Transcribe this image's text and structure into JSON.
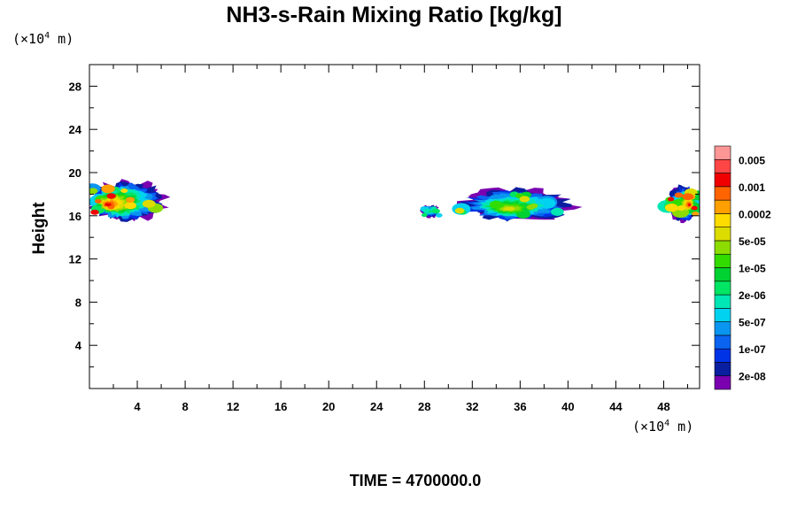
{
  "chart_data": {
    "type": "heatmap",
    "title": "NH3-s-Rain Mixing Ratio [kg/kg]",
    "ylabel": "Height",
    "xlabel": "",
    "x_unit": {
      "prefix": "(×10",
      "exp": "4",
      "suffix": " m)"
    },
    "y_unit": {
      "prefix": "(×10",
      "exp": "4",
      "suffix": " m)"
    },
    "xlim": [
      0,
      51
    ],
    "ylim": [
      0,
      30
    ],
    "x_ticks": [
      "4",
      "8",
      "12",
      "16",
      "20",
      "24",
      "28",
      "32",
      "36",
      "40",
      "44",
      "48"
    ],
    "y_ticks": [
      "4",
      "8",
      "12",
      "16",
      "20",
      "24",
      "28"
    ],
    "colorbar": {
      "colors": [
        "#7a00b0",
        "#0a1ea0",
        "#0032e6",
        "#0a64f0",
        "#0a96f0",
        "#00d2f0",
        "#00e6b4",
        "#00e664",
        "#00d232",
        "#32dc00",
        "#8cdc00",
        "#dcdc00",
        "#ffdc00",
        "#ffa000",
        "#ff6400",
        "#f00000",
        "#ff4646",
        "#ff9696"
      ],
      "labels": [
        "2e-08",
        "1e-07",
        "5e-07",
        "2e-06",
        "1e-05",
        "5e-05",
        "0.0002",
        "0.001",
        "0.005"
      ]
    },
    "regions": [
      {
        "x": [
          0,
          6.5
        ],
        "y": [
          15.5,
          19.3
        ],
        "peak_level": 15,
        "core": [
          1.4,
          17.0
        ]
      },
      {
        "x": [
          27.7,
          29.3
        ],
        "y": [
          15.8,
          17.0
        ],
        "peak_level": 7,
        "core": [
          28.5,
          16.4
        ]
      },
      {
        "x": [
          30.8,
          40.6
        ],
        "y": [
          15.5,
          18.7
        ],
        "peak_level": 11,
        "core": [
          35.0,
          16.6
        ]
      },
      {
        "x": [
          48.3,
          51
        ],
        "y": [
          15.5,
          18.9
        ],
        "peak_level": 15,
        "core": [
          50.2,
          17.0
        ]
      }
    ],
    "footer": "TIME = 4700000.0"
  }
}
